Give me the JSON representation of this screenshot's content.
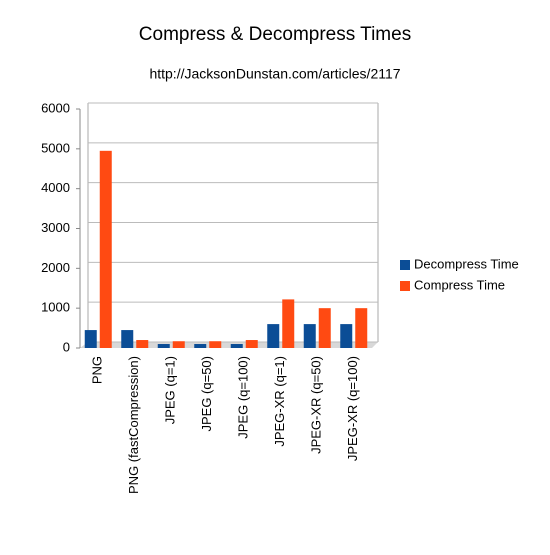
{
  "chart_data": {
    "type": "bar",
    "title": "Compress & Decompress Times",
    "subtitle": "http://JacksonDunstan.com/articles/2117",
    "categories": [
      "PNG",
      "PNG (fastCompression)",
      "JPEG (q=1)",
      "JPEG (q=50)",
      "JPEG (q=100)",
      "JPEG-XR (q=1)",
      "JPEG-XR (q=50)",
      "JPEG-XR (q=100)"
    ],
    "series": [
      {
        "name": "Decompress Time",
        "color": "#0b4d96",
        "values": [
          450,
          450,
          100,
          100,
          100,
          600,
          600,
          600
        ]
      },
      {
        "name": "Compress Time",
        "color": "#ff4a12",
        "values": [
          4950,
          200,
          170,
          170,
          200,
          1220,
          1000,
          1000
        ]
      }
    ],
    "ylim": [
      0,
      6000
    ],
    "yticks": [
      0,
      1000,
      2000,
      3000,
      4000,
      5000,
      6000
    ],
    "grid": true,
    "legend": "right"
  }
}
